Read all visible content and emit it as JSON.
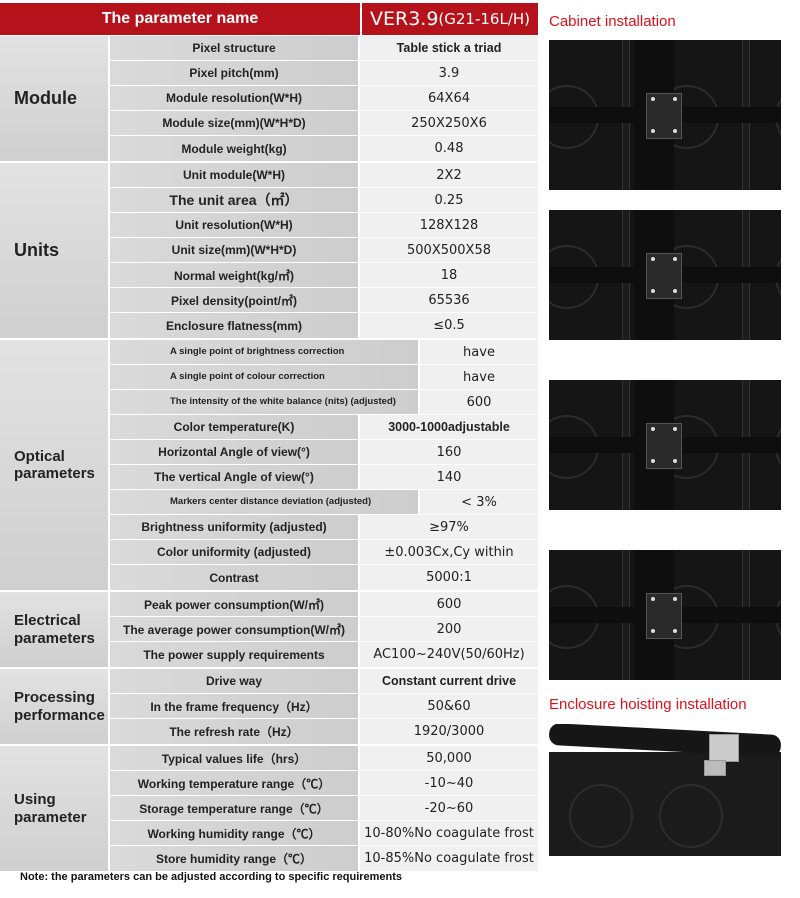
{
  "header": {
    "param_name": "The parameter name",
    "model_main": "VER3.9",
    "model_sub": "(G21-16L/H)"
  },
  "groups": [
    {
      "name": "Module",
      "rows": [
        {
          "param": "Pixel structure",
          "value": "Table stick a triad",
          "bold": true
        },
        {
          "param": "Pixel pitch(mm)",
          "value": "3.9"
        },
        {
          "param": "Module resolution(W*H)",
          "value": "64X64"
        },
        {
          "param": "Module size(mm)(W*H*D)",
          "value": "250X250X6"
        },
        {
          "param": "Module weight(kg)",
          "value": "0.48"
        }
      ]
    },
    {
      "name": "Units",
      "rows": [
        {
          "param": "Unit module(W*H)",
          "value": "2X2"
        },
        {
          "param": "The unit area（㎡）",
          "value": "0.25",
          "big": true
        },
        {
          "param": "Unit resolution(W*H)",
          "value": "128X128"
        },
        {
          "param": "Unit size(mm)(W*H*D)",
          "value": "500X500X58"
        },
        {
          "param": "Normal weight(kg/㎡)",
          "value": "18"
        },
        {
          "param": "Pixel density(point/㎡)",
          "value": "65536"
        },
        {
          "param": "Enclosure flatness(mm)",
          "value": "≤0.5"
        }
      ]
    },
    {
      "name": "Optical parameters",
      "rows": [
        {
          "param": "A single point of brightness correction",
          "value": "have",
          "small": true
        },
        {
          "param": "A single point of colour correction",
          "value": "have",
          "small": true
        },
        {
          "param": "The intensity of the white balance (nits) (adjusted)",
          "value": "600",
          "small": true
        },
        {
          "param": "Color temperature(K)",
          "value": "3000-1000adjustable",
          "bold": true
        },
        {
          "param": "Horizontal Angle of view(°)",
          "value": "160"
        },
        {
          "param": "The vertical Angle of view(°)",
          "value": "140"
        },
        {
          "param": "Markers center distance deviation (adjusted)",
          "value": "< 3%",
          "small": true
        },
        {
          "param": "Brightness uniformity (adjusted)",
          "value": "≥97%"
        },
        {
          "param": "Color uniformity (adjusted)",
          "value": "±0.003Cx,Cy within"
        },
        {
          "param": "Contrast",
          "value": "5000:1"
        }
      ]
    },
    {
      "name": "Electrical parameters",
      "rows": [
        {
          "param": "Peak power consumption(W/㎡)",
          "value": "600"
        },
        {
          "param": "The average power consumption(W/㎡)",
          "value": "200"
        },
        {
          "param": "The power supply requirements",
          "value": "AC100~240V(50/60Hz)"
        }
      ]
    },
    {
      "name": "Processing performance",
      "rows": [
        {
          "param": "Drive way",
          "value": "Constant current drive",
          "bold": true
        },
        {
          "param": "In the frame frequency（Hz）",
          "value": "50&60"
        },
        {
          "param": "The refresh rate（Hz）",
          "value": "1920/3000"
        }
      ]
    },
    {
      "name": "Using parameter",
      "rows": [
        {
          "param": "Typical values life（hrs）",
          "value": "50,000"
        },
        {
          "param": "Working temperature range（℃）",
          "value": "-10~40"
        },
        {
          "param": "Storage temperature range（℃）",
          "value": "-20~60"
        },
        {
          "param": "Working humidity range（℃）",
          "value": "10-80%No coagulate frost"
        },
        {
          "param": "Store humidity range（℃）",
          "value": "10-85%No coagulate frost"
        }
      ]
    }
  ],
  "captions": {
    "cabinet": "Cabinet installation",
    "hoisting": "Enclosure hoisting installation"
  },
  "note": "Note: the parameters can be adjusted according to specific requirements",
  "colors": {
    "header_bg": "#b5121b",
    "caption": "#e0101a"
  }
}
